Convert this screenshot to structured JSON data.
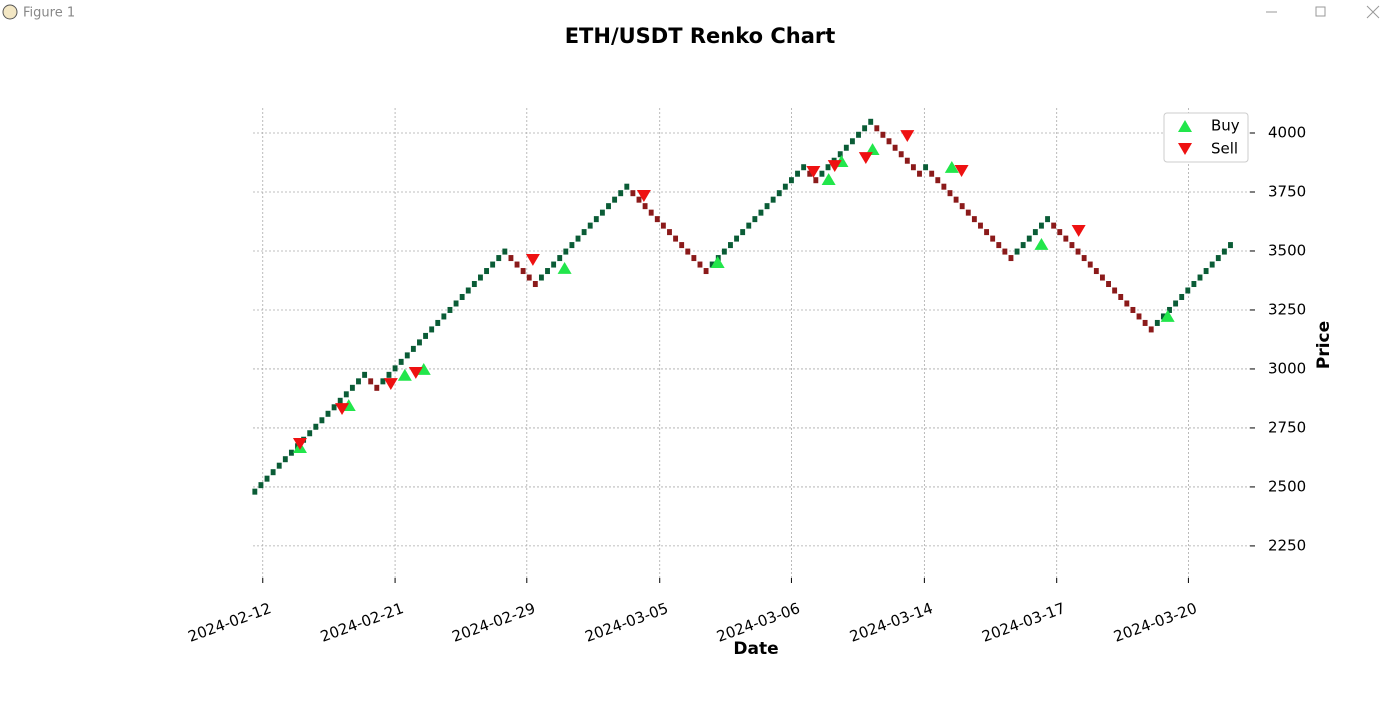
{
  "window": {
    "title": "Figure 1"
  },
  "chart_data": {
    "type": "renko",
    "title": "ETH/USDT Renko Chart",
    "x_label": "Date",
    "y_label": "Price",
    "up_color": "#0a5c36",
    "down_color": "#8b1a1a",
    "values": [
      2480,
      2507.5,
      2535,
      2562.5,
      2590,
      2617.5,
      2645,
      2672.5,
      2700,
      2727.5,
      2755,
      2782.5,
      2810,
      2837.5,
      2865,
      2892.5,
      2920,
      2947.5,
      2975,
      2947.5,
      2920,
      2947.5,
      2975,
      3002.5,
      3030,
      3057.5,
      3085,
      3112.5,
      3140,
      3167.5,
      3195,
      3222.5,
      3250,
      3277.5,
      3305,
      3332.5,
      3360,
      3387.5,
      3415,
      3442.5,
      3470,
      3497.5,
      3470,
      3442.5,
      3415,
      3387.5,
      3360,
      3387.5,
      3415,
      3442.5,
      3470,
      3497.5,
      3525,
      3552.5,
      3580,
      3607.5,
      3635,
      3662.5,
      3690,
      3717.5,
      3745,
      3772.5,
      3745,
      3717.5,
      3690,
      3662.5,
      3635,
      3607.5,
      3580,
      3552.5,
      3525,
      3497.5,
      3470,
      3442.5,
      3415,
      3442.5,
      3470,
      3497.5,
      3525,
      3552.5,
      3580,
      3607.5,
      3635,
      3662.5,
      3690,
      3717.5,
      3745,
      3772.5,
      3800,
      3827.5,
      3855,
      3827.5,
      3800,
      3827.5,
      3855,
      3882.5,
      3910,
      3937.5,
      3965,
      3992.5,
      4020,
      4047.5,
      4020,
      3992.5,
      3965,
      3937.5,
      3910,
      3882.5,
      3855,
      3827.5,
      3855,
      3827.5,
      3800,
      3772.5,
      3745,
      3717.5,
      3690,
      3662.5,
      3635,
      3607.5,
      3580,
      3552.5,
      3525,
      3497.5,
      3470,
      3497.5,
      3525,
      3552.5,
      3580,
      3607.5,
      3635,
      3607.5,
      3580,
      3552.5,
      3525,
      3497.5,
      3470,
      3442.5,
      3415,
      3387.5,
      3360,
      3332.5,
      3305,
      3277.5,
      3250,
      3222.5,
      3195,
      3167.5,
      3195,
      3222.5,
      3250,
      3277.5,
      3305,
      3332.5,
      3360,
      3387.5,
      3415,
      3442.5,
      3470,
      3497.5,
      3525
    ],
    "series": [
      {
        "name": "Buy",
        "color": "#22e64b",
        "marker": "triangle-up",
        "x": [
          7.4,
          15.4,
          24.6,
          27.7,
          50.8,
          75.9,
          94.1,
          96.2,
          101.3,
          114.3,
          129.0,
          149.7
        ],
        "values": [
          2669,
          2847,
          2975,
          3000,
          3428,
          3453,
          3805,
          3881,
          3932,
          3856,
          3530,
          3225
        ]
      },
      {
        "name": "Sell",
        "color": "#ee1111",
        "marker": "triangle-down",
        "x": [
          7.4,
          14.3,
          22.3,
          26.4,
          45.6,
          63.8,
          91.6,
          95.1,
          100.2,
          107.0,
          115.9,
          135.1
        ],
        "values": [
          2682,
          2830,
          2936,
          2983,
          3462,
          3733,
          3835,
          3860,
          3894,
          3987,
          3839,
          3585
        ]
      }
    ],
    "xlim": [
      -0.3,
      163.2
    ],
    "xticks": [
      {
        "value": 1.3,
        "label": "2024-02-12"
      },
      {
        "value": 23,
        "label": "2024-02-21"
      },
      {
        "value": 44.6,
        "label": "2024-02-29"
      },
      {
        "value": 66.4,
        "label": "2024-03-05"
      },
      {
        "value": 88,
        "label": "2024-03-06"
      },
      {
        "value": 109.8,
        "label": "2024-03-14"
      },
      {
        "value": 131.5,
        "label": "2024-03-17"
      },
      {
        "value": 153.1,
        "label": "2024-03-20"
      }
    ],
    "ylim": [
      2114,
      4106
    ],
    "yticks": [
      2250,
      2500,
      2750,
      3000,
      3250,
      3500,
      3750,
      4000
    ],
    "grid": true,
    "y_axis_side": "right",
    "legend": "upper right"
  }
}
